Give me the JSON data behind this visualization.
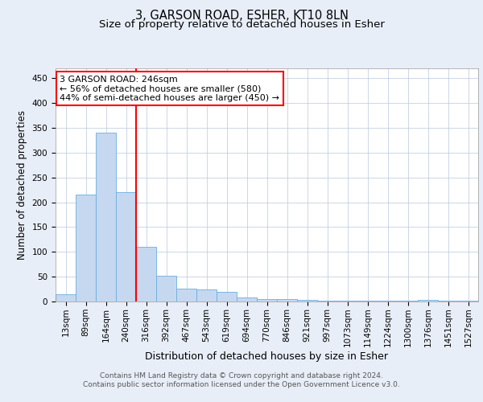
{
  "title": "3, GARSON ROAD, ESHER, KT10 8LN",
  "subtitle": "Size of property relative to detached houses in Esher",
  "xlabel": "Distribution of detached houses by size in Esher",
  "ylabel": "Number of detached properties",
  "footer_line1": "Contains HM Land Registry data © Crown copyright and database right 2024.",
  "footer_line2": "Contains public sector information licensed under the Open Government Licence v3.0.",
  "bar_labels": [
    "13sqm",
    "89sqm",
    "164sqm",
    "240sqm",
    "316sqm",
    "392sqm",
    "467sqm",
    "543sqm",
    "619sqm",
    "694sqm",
    "770sqm",
    "846sqm",
    "921sqm",
    "997sqm",
    "1073sqm",
    "1149sqm",
    "1224sqm",
    "1300sqm",
    "1376sqm",
    "1451sqm",
    "1527sqm"
  ],
  "bar_values": [
    15,
    215,
    340,
    220,
    110,
    52,
    26,
    25,
    20,
    8,
    5,
    5,
    3,
    2,
    2,
    1,
    2,
    1,
    3,
    2,
    2
  ],
  "bar_color": "#c5d8f0",
  "bar_edge_color": "#6aaee0",
  "bar_width": 1.0,
  "vline_x": 3.5,
  "vline_color": "red",
  "annotation_text": "3 GARSON ROAD: 246sqm\n← 56% of detached houses are smaller (580)\n44% of semi-detached houses are larger (450) →",
  "annotation_box_color": "white",
  "annotation_box_edgecolor": "red",
  "ylim": [
    0,
    470
  ],
  "yticks": [
    0,
    50,
    100,
    150,
    200,
    250,
    300,
    350,
    400,
    450
  ],
  "background_color": "#e8eef8",
  "plot_bg_color": "white",
  "title_fontsize": 10.5,
  "subtitle_fontsize": 9.5,
  "xlabel_fontsize": 9,
  "ylabel_fontsize": 8.5,
  "tick_fontsize": 7.5,
  "annotation_fontsize": 8,
  "footer_fontsize": 6.5
}
